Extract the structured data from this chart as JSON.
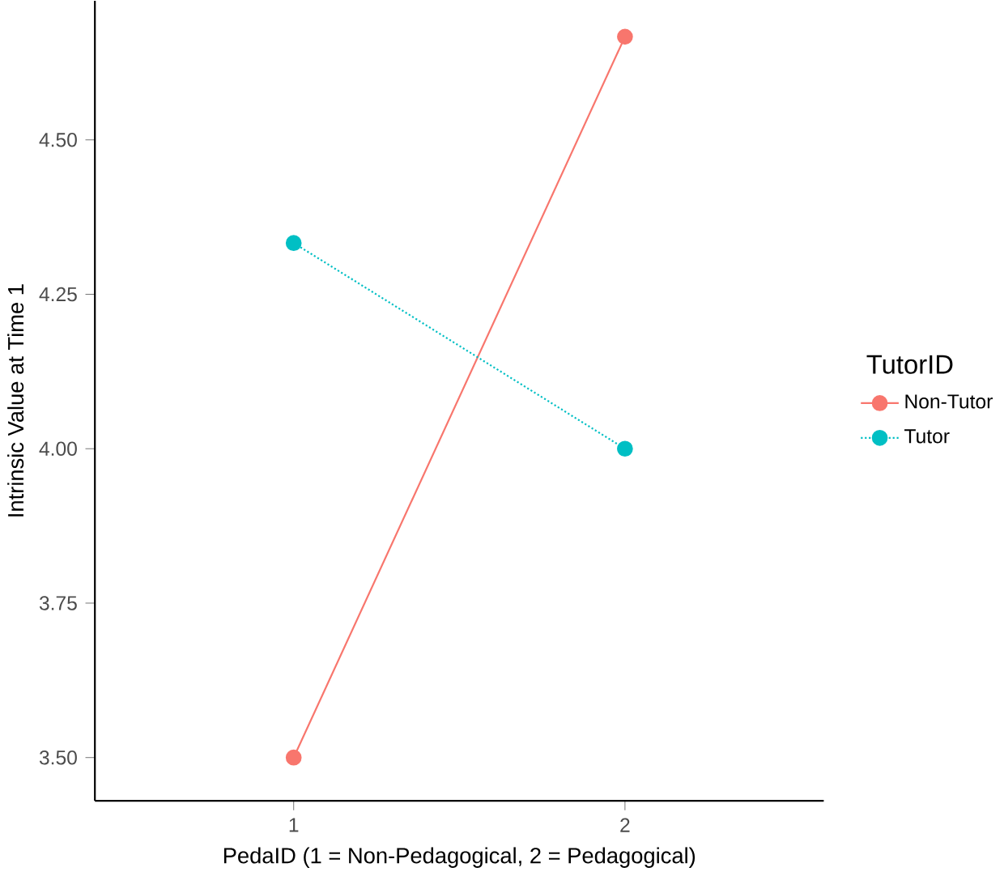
{
  "chart_data": {
    "type": "line",
    "xlabel": "PedaID (1 = Non-Pedagogical, 2 = Pedagogical)",
    "ylabel": "Intrinsic Value at Time 1",
    "legend_title": "TutorID",
    "x": [
      1,
      2
    ],
    "series": [
      {
        "name": "Non-Tutor",
        "color": "#f8766d",
        "values": [
          3.5,
          4.667
        ],
        "line_style": "solid"
      },
      {
        "name": "Tutor",
        "color": "#00bfc4",
        "values": [
          4.333,
          4.0
        ],
        "line_style": "dotted"
      }
    ],
    "xlim": [
      0.4,
      2.6
    ],
    "xticks": [
      1,
      2
    ],
    "ylim": [
      3.43,
      4.725
    ],
    "yticks": [
      {
        "value": 3.5,
        "label": "3.50"
      },
      {
        "value": 3.75,
        "label": "3.75"
      },
      {
        "value": 4.0,
        "label": "4.00"
      },
      {
        "value": 4.25,
        "label": "4.25"
      },
      {
        "value": 4.5,
        "label": "4.50"
      }
    ],
    "marker": "circle",
    "legend": "right",
    "grid": false
  }
}
